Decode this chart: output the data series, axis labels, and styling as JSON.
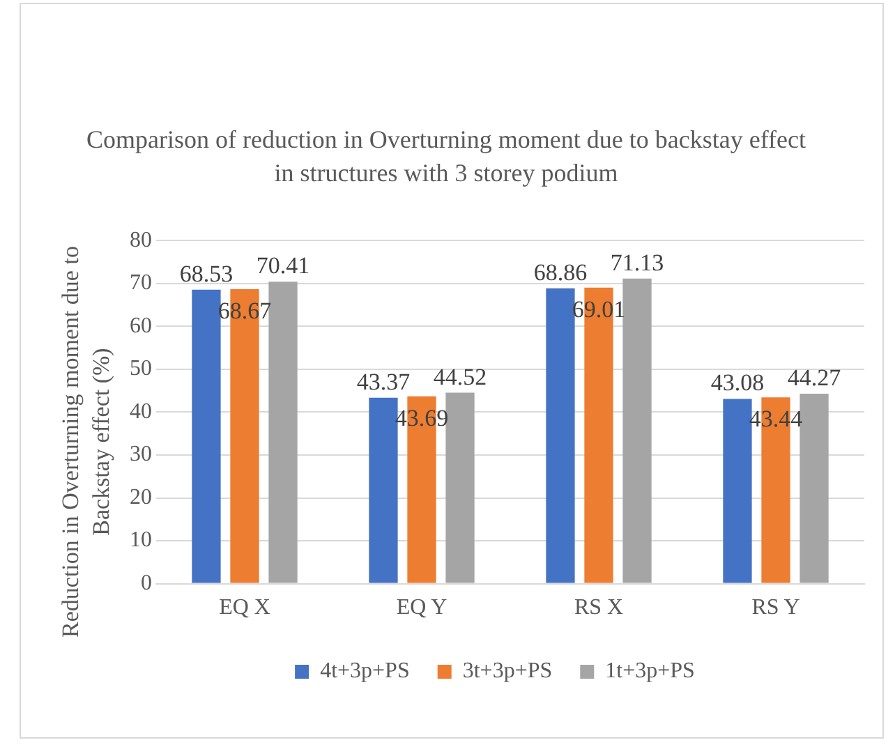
{
  "chart_data": {
    "type": "bar",
    "title": "Comparison of reduction in Overturning moment due to backstay effect in structures with 3 storey podium",
    "ylabel": "Reduction in Overturning moment due to Backstay effect (%)",
    "categories": [
      "EQ X",
      "EQ Y",
      "RS X",
      "RS Y"
    ],
    "series": [
      {
        "name": "4t+3p+PS",
        "color": "#4472c4",
        "values": [
          68.53,
          43.37,
          68.86,
          43.08
        ]
      },
      {
        "name": "3t+3p+PS",
        "color": "#ed7d31",
        "values": [
          68.67,
          43.69,
          69.01,
          43.44
        ]
      },
      {
        "name": "1t+3p+PS",
        "color": "#a5a5a5",
        "values": [
          70.41,
          44.52,
          71.13,
          44.27
        ]
      }
    ],
    "ylim": [
      0,
      80
    ],
    "yticks": [
      0,
      10,
      20,
      30,
      40,
      50,
      60,
      70,
      80
    ],
    "grid": "y",
    "legend": "bottom",
    "data_labels": true
  }
}
